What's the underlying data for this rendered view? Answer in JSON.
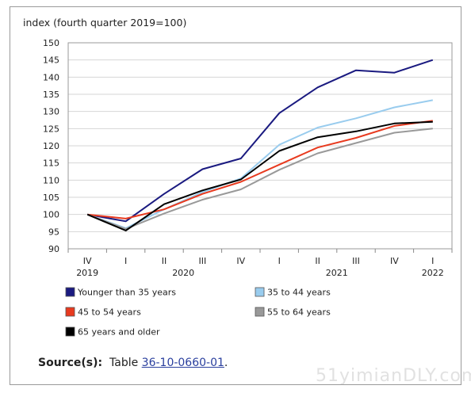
{
  "chart_data": {
    "type": "line",
    "ylabel": "index (fourth quarter 2019=100)",
    "ylim": [
      90,
      150
    ],
    "yticks": [
      90,
      95,
      100,
      105,
      110,
      115,
      120,
      125,
      130,
      135,
      140,
      145,
      150
    ],
    "quarters": [
      "IV",
      "I",
      "II",
      "III",
      "IV",
      "I",
      "II",
      "III",
      "IV",
      "I"
    ],
    "years": [
      {
        "label": "2019",
        "index": 0
      },
      {
        "label": "2020",
        "index": 2.5
      },
      {
        "label": "2021",
        "index": 6.5
      },
      {
        "label": "2022",
        "index": 9
      }
    ],
    "grid": true,
    "legend_position": "bottom",
    "series": [
      {
        "name": "Younger than 35 years",
        "color": "#1a1a80",
        "values": [
          100,
          98,
          106,
          113.2,
          116.3,
          129.5,
          137,
          142,
          141.3,
          145
        ]
      },
      {
        "name": "35 to 44 years",
        "color": "#99ccee",
        "values": [
          100,
          96,
          101.5,
          106.5,
          110.5,
          120.3,
          125.3,
          128,
          131.2,
          133.3
        ]
      },
      {
        "name": "45 to 54 years",
        "color": "#e83a1f",
        "values": [
          100,
          98.8,
          101.5,
          106,
          109.5,
          114.5,
          119.5,
          122.3,
          125.8,
          127.3
        ]
      },
      {
        "name": "55 to 64 years",
        "color": "#999999",
        "values": [
          100,
          95.8,
          100.3,
          104.3,
          107.3,
          113,
          117.8,
          120.8,
          123.8,
          125
        ]
      },
      {
        "name": "65 years and older",
        "color": "#000000",
        "values": [
          100,
          95.3,
          103,
          107,
          110.2,
          118.5,
          122.5,
          124.2,
          126.5,
          127
        ]
      }
    ]
  },
  "source": {
    "label": "Source(s):",
    "text": "Table",
    "link": "36-10-0660-01",
    "suffix": "."
  },
  "watermark": "51yimianDLY.com"
}
